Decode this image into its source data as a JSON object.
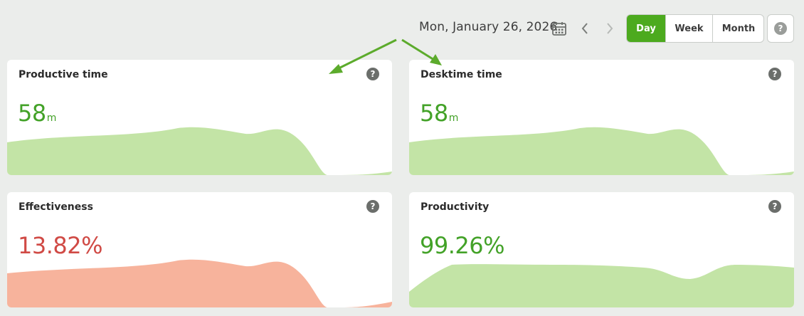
{
  "header": {
    "date": "Mon, January 26, 2026",
    "range_options": [
      "Day",
      "Week",
      "Month"
    ],
    "selected_range": "Day",
    "help_symbol": "?",
    "icons": [
      "calendar-icon",
      "chevron-left-icon",
      "chevron-right-icon",
      "help-icon"
    ]
  },
  "colors": {
    "accent": "#4caa1e",
    "green_text": "#43a228",
    "green_area": "#c3e4a6",
    "red_text": "#d04a45",
    "red_area": "#f7b39c"
  },
  "cards": [
    {
      "title": "Productive time",
      "value": "58",
      "unit": "m",
      "help": "?"
    },
    {
      "title": "Desktime time",
      "value": "58",
      "unit": "m",
      "help": "?"
    },
    {
      "title": "Effectiveness",
      "value": "13.82%",
      "unit": "",
      "help": "?"
    },
    {
      "title": "Productivity",
      "value": "99.26%",
      "unit": "",
      "help": "?"
    }
  ]
}
